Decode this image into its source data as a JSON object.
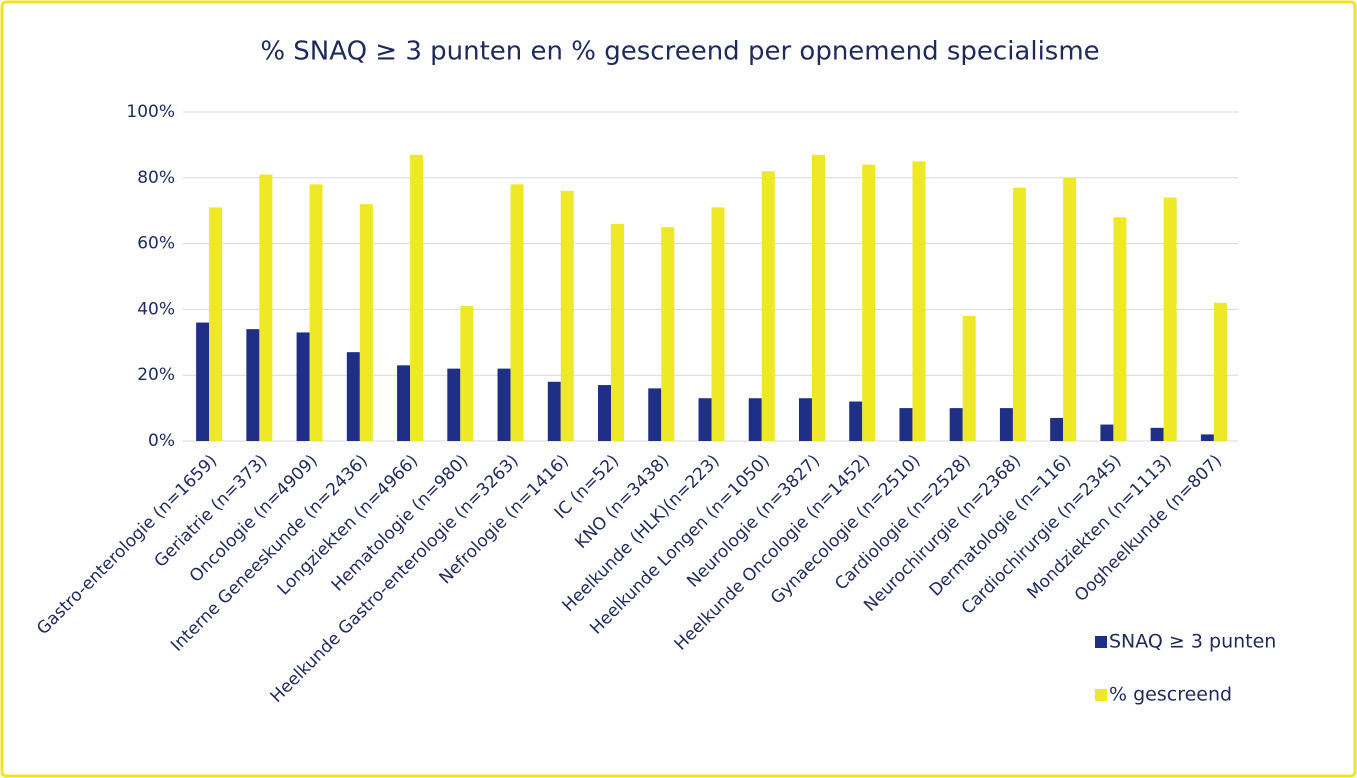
{
  "chart_data": {
    "type": "bar",
    "title": "% SNAQ ≥ 3 punten en % gescreend per opnemend specialisme",
    "categories": [
      "Gastro-enterologie (n=1659)",
      "Geriatrie (n=373)",
      "Oncologie (n=4909)",
      "Interne Geneeskunde (n=2436)",
      "Longziekten (n=4966)",
      "Hematologie (n=980)",
      "Heelkunde Gastro-enterologie (n=3263)",
      "Nefrologie (n=1416)",
      "IC (n=52)",
      "KNO (n=3438)",
      "Heelkunde (HLK)(n=223)",
      "Heelkunde Longen (n=1050)",
      "Neurologie (n=3827)",
      "Heelkunde Oncologie (n=1452)",
      "Gynaecologie (n=2510)",
      "Cardiologie (n=2528)",
      "Neurochirurgie (n=2368)",
      "Dermatologie (n=116)",
      "Cardiochirurgie (n=2345)",
      "Mondziekten (n=1113)",
      "Oogheelkunde (n=807)"
    ],
    "series": [
      {
        "name": "SNAQ ≥ 3 punten",
        "color": "#1f2f86",
        "values": [
          36,
          34,
          33,
          27,
          23,
          22,
          22,
          18,
          17,
          16,
          13,
          13,
          13,
          12,
          10,
          10,
          10,
          7,
          5,
          4,
          2
        ]
      },
      {
        "name": "% gescreend",
        "color": "#eee826",
        "values": [
          71,
          81,
          78,
          72,
          87,
          41,
          78,
          76,
          66,
          65,
          71,
          82,
          87,
          84,
          85,
          38,
          77,
          80,
          68,
          74,
          42
        ]
      }
    ],
    "ylim": [
      0,
      100
    ],
    "yticks": [
      {
        "value": 0,
        "label": "0%"
      },
      {
        "value": 20,
        "label": "20%"
      },
      {
        "value": 40,
        "label": "40%"
      },
      {
        "value": 60,
        "label": "60%"
      },
      {
        "value": 80,
        "label": "80%"
      },
      {
        "value": 100,
        "label": "100%"
      }
    ],
    "grid": true
  }
}
